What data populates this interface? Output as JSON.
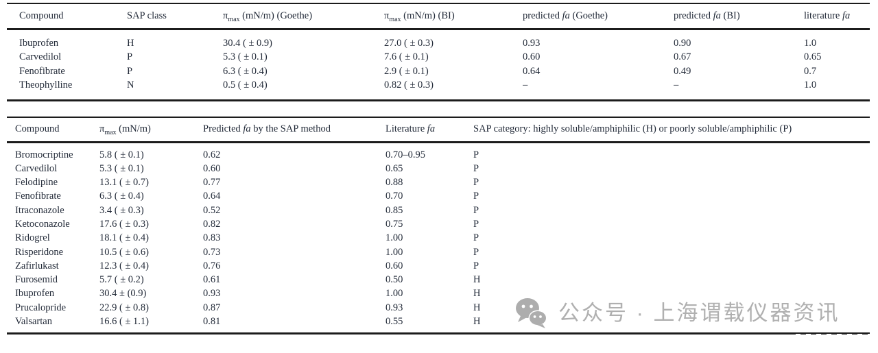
{
  "table1": {
    "headers": {
      "compound": "Compound",
      "sap_class": "SAP class",
      "pimax_goethe": {
        "pre": "π",
        "sub": "max",
        "post": " (mN/m) (Goethe)"
      },
      "pimax_bi": {
        "pre": "π",
        "sub": "max",
        "post": " (mN/m) (BI)"
      },
      "predicted_fa_goethe": {
        "pre": "predicted ",
        "it": "fa",
        "post": " (Goethe)"
      },
      "predicted_fa_bi": {
        "pre": "predicted ",
        "it": "fa",
        "post": " (BI)"
      },
      "literature_fa": {
        "pre": "literature ",
        "it": "fa",
        "post": ""
      }
    },
    "rows": [
      [
        "Ibuprofen",
        "H",
        "30.4 ( ± 0.9)",
        "27.0 ( ± 0.3)",
        "0.93",
        "0.90",
        "1.0"
      ],
      [
        "Carvedilol",
        "P",
        "5.3 ( ± 0.1)",
        "7.6 ( ± 0.1)",
        "0.60",
        "0.67",
        "0.65"
      ],
      [
        "Fenofibrate",
        "P",
        "6.3 ( ± 0.4)",
        "2.9 ( ± 0.1)",
        "0.64",
        "0.49",
        "0.7"
      ],
      [
        "Theophylline",
        "N",
        "0.5 ( ± 0.4)",
        "0.82 ( ± 0.3)",
        "–",
        "–",
        "1.0"
      ]
    ]
  },
  "table2": {
    "headers": {
      "compound": "Compound",
      "pimax": {
        "pre": "π",
        "sub": "max",
        "post": " (mN/m)"
      },
      "predicted_fa": {
        "pre": "Predicted ",
        "it": "fa",
        "post": " by the SAP method"
      },
      "literature_fa": {
        "pre": "Literature ",
        "it": "fa",
        "post": ""
      },
      "sap_category": "SAP category: highly soluble/amphiphilic (H) or poorly soluble/amphiphilic (P)"
    },
    "rows": [
      [
        "Bromocriptine",
        "5.8 ( ± 0.1)",
        "0.62",
        "0.70–0.95",
        "P"
      ],
      [
        "Carvedilol",
        "5.3 ( ± 0.1)",
        "0.60",
        "0.65",
        "P"
      ],
      [
        "Felodipine",
        "13.1 ( ± 0.7)",
        "0.77",
        "0.88",
        "P"
      ],
      [
        "Fenofibrate",
        "6.3 ( ± 0.4)",
        "0.64",
        "0.70",
        "P"
      ],
      [
        "Itraconazole",
        "3.4 ( ± 0.3)",
        "0.52",
        "0.85",
        "P"
      ],
      [
        "Ketoconazole",
        "17.6 ( ± 0.3)",
        "0.82",
        "0.75",
        "P"
      ],
      [
        "Ridogrel",
        "18.1 ( ± 0.4)",
        "0.83",
        "1.00",
        "P"
      ],
      [
        "Risperidone",
        "10.5 ( ± 0.6)",
        "0.73",
        "1.00",
        "P"
      ],
      [
        "Zafirlukast",
        "12.3 ( ± 0.4)",
        "0.76",
        "0.60",
        "P"
      ],
      [
        "Furosemid",
        "5.7 ( ± 0.2)",
        "0.61",
        "0.50",
        "H"
      ],
      [
        "Ibuprofen",
        "30.4 ± (0.9)",
        "0.93",
        "1.00",
        "H"
      ],
      [
        "Prucalopride",
        "22.9 ( ± 0.8)",
        "0.87",
        "0.93",
        "H"
      ],
      [
        "Valsartan",
        "16.6 ( ± 1.1)",
        "0.81",
        "0.55",
        "H"
      ]
    ]
  },
  "watermark": {
    "label": "公众号 · 上海谓载仪器资讯",
    "icon": "wechat-icon",
    "color": "#b0b0b0"
  },
  "colors": {
    "background": "#ffffff",
    "text": "#222a38",
    "rule": "#1c1c1c",
    "watermark": "#b0b0b0"
  }
}
